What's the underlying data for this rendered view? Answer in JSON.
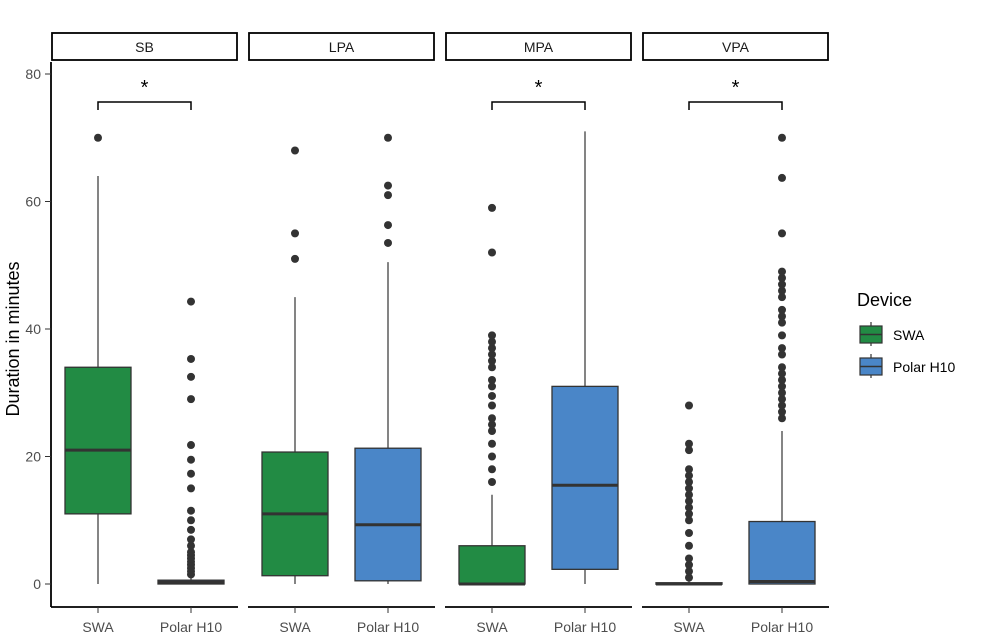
{
  "chart_data": {
    "type": "boxplot",
    "ylabel": "Duration in minutes",
    "ylim": [
      -3,
      81
    ],
    "yticks": [
      0,
      20,
      40,
      60,
      80
    ],
    "categories": [
      "SWA",
      "Polar H10"
    ],
    "facets": [
      "SB",
      "LPA",
      "MPA",
      "VPA"
    ],
    "legend": {
      "title": "Device",
      "placement": "right",
      "items": [
        {
          "label": "SWA",
          "color": "#228b44"
        },
        {
          "label": "Polar H10",
          "color": "#4a86c8"
        }
      ]
    },
    "boxes": {
      "SB": [
        {
          "device": "SWA",
          "q1": 11,
          "median": 21,
          "q3": 34,
          "whisker_low": 0,
          "whisker_high": 64,
          "outliers": [
            70
          ]
        },
        {
          "device": "Polar H10",
          "q1": 0,
          "median": 0.3,
          "q3": 0.6,
          "whisker_low": 0,
          "whisker_high": 1.2,
          "outliers": [
            1.5,
            2.0,
            2.5,
            3.0,
            3.5,
            4.0,
            4.5,
            5.0,
            6.0,
            7.0,
            8.5,
            10.0,
            11.5,
            15.0,
            17.3,
            19.5,
            21.8,
            29.0,
            32.5,
            35.3,
            44.3
          ]
        }
      ],
      "LPA": [
        {
          "device": "SWA",
          "q1": 1.3,
          "median": 11,
          "q3": 20.7,
          "whisker_low": 0,
          "whisker_high": 45,
          "outliers": [
            51,
            55,
            68
          ]
        },
        {
          "device": "Polar H10",
          "q1": 0.5,
          "median": 9.3,
          "q3": 21.3,
          "whisker_low": 0,
          "whisker_high": 50.5,
          "outliers": [
            53.5,
            56.3,
            61,
            62.5,
            70
          ]
        }
      ],
      "MPA": [
        {
          "device": "SWA",
          "q1": 0,
          "median": 0,
          "q3": 6,
          "whisker_low": 0,
          "whisker_high": 14,
          "outliers": [
            16,
            18,
            20,
            22,
            24,
            25,
            26,
            28,
            29.5,
            31,
            32,
            34,
            35,
            36,
            37,
            38,
            39,
            52,
            59
          ]
        },
        {
          "device": "Polar H10",
          "q1": 2.3,
          "median": 15.5,
          "q3": 31,
          "whisker_low": 0,
          "whisker_high": 71,
          "outliers": []
        }
      ],
      "VPA": [
        {
          "device": "SWA",
          "q1": 0,
          "median": 0,
          "q3": 0.2,
          "whisker_low": 0,
          "whisker_high": 0.5,
          "outliers": [
            1,
            2,
            3,
            4,
            6,
            8,
            10,
            11,
            12,
            13,
            14,
            15,
            16,
            17,
            18,
            21,
            22,
            28
          ]
        },
        {
          "device": "Polar H10",
          "q1": 0,
          "median": 0.4,
          "q3": 9.8,
          "whisker_low": 0,
          "whisker_high": 24,
          "outliers": [
            26,
            27,
            28,
            29,
            30,
            31,
            32,
            33,
            34,
            36,
            37,
            39,
            41,
            42,
            43,
            45,
            46,
            47,
            48,
            49,
            55,
            63.7,
            70
          ]
        }
      ]
    },
    "significance": [
      {
        "facet": "SB",
        "label": "*"
      },
      {
        "facet": "MPA",
        "label": "*"
      },
      {
        "facet": "VPA",
        "label": "*"
      }
    ]
  }
}
